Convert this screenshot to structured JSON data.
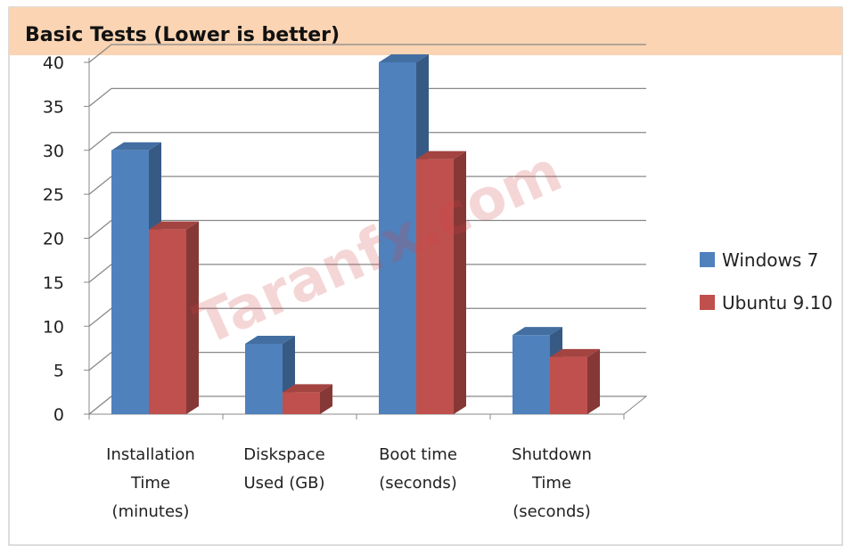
{
  "chart_data": {
    "type": "bar3d",
    "title": "Basic Tests (Lower is better)",
    "watermark": "Taranfx.com",
    "categories": [
      "Installation Time (minutes)",
      "Diskspace Used (GB)",
      "Boot time (seconds)",
      "Shutdown Time (seconds)"
    ],
    "series": [
      {
        "name": "Windows 7",
        "color": "#4f81bd",
        "values": [
          30,
          8,
          40,
          9
        ]
      },
      {
        "name": "Ubuntu 9.10",
        "color": "#c0504d",
        "values": [
          21,
          2.5,
          29,
          6.5
        ]
      }
    ],
    "ylim": [
      0,
      40
    ],
    "yticks": [
      0,
      5,
      10,
      15,
      20,
      25,
      30,
      35,
      40
    ],
    "grid": true,
    "legend": "right"
  }
}
